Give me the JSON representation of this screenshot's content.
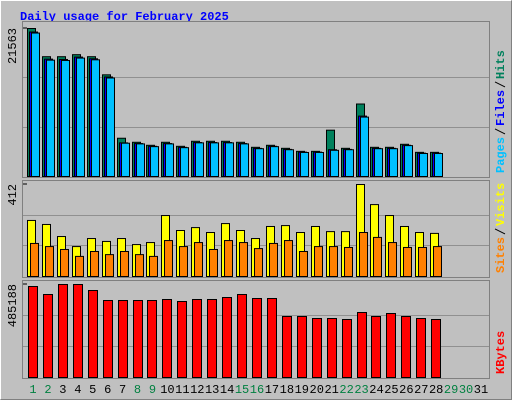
{
  "chart_data": [
    {
      "type": "bar",
      "title": "Daily usage for February 2025",
      "ylim": [
        0,
        21563
      ],
      "yticks": [
        21563
      ],
      "series": [
        {
          "name": "Hits",
          "color": "#00805c",
          "values": [
            21563,
            17456,
            17456,
            17750,
            17456,
            14815,
            5574,
            4987,
            4547,
            4987,
            4400,
            5134,
            5134,
            5134,
            4987,
            4254,
            4547,
            4107,
            3667,
            3667,
            6748,
            4107,
            10562,
            4254,
            4254,
            4694,
            3520,
            3520,
            null,
            null,
            null
          ]
        },
        {
          "name": "Files",
          "color": "#0000ff",
          "values": [
            21050,
            17100,
            17050,
            17400,
            17150,
            14500,
            4900,
            4800,
            4400,
            4800,
            4250,
            4950,
            4950,
            4950,
            4800,
            4100,
            4400,
            3950,
            3550,
            3550,
            3900,
            3950,
            8800,
            4100,
            4100,
            4550,
            3400,
            3400,
            null,
            null,
            null
          ]
        },
        {
          "name": "Pages",
          "color": "#00c0ff",
          "values": [
            20900,
            16950,
            16900,
            17250,
            17000,
            14350,
            4850,
            4750,
            4350,
            4750,
            4200,
            4900,
            4900,
            4900,
            4750,
            4050,
            4350,
            3900,
            3500,
            3500,
            3814,
            3900,
            8654,
            4050,
            4050,
            4500,
            3350,
            3350,
            null,
            null,
            null
          ]
        }
      ]
    },
    {
      "type": "bar",
      "ylim": [
        0,
        412
      ],
      "yticks": [
        412
      ],
      "series": [
        {
          "name": "Visits",
          "color": "#ffff00",
          "values": [
            251,
            233,
            179,
            134,
            170,
            157,
            170,
            143,
            152,
            273,
            206,
            219,
            197,
            237,
            206,
            170,
            224,
            228,
            197,
            224,
            201,
            201,
            412,
            322,
            273,
            224,
            197,
            193,
            null,
            null,
            null
          ]
        },
        {
          "name": "Sites",
          "color": "#ff8000",
          "values": [
            148,
            134,
            121,
            90,
            112,
            98,
            112,
            98,
            90,
            161,
            134,
            152,
            121,
            161,
            152,
            125,
            148,
            161,
            112,
            134,
            134,
            130,
            197,
            175,
            152,
            130,
            130,
            134,
            null,
            null,
            null
          ]
        }
      ]
    },
    {
      "type": "bar",
      "ylim": [
        0,
        485188
      ],
      "yticks": [
        485188
      ],
      "categories": [
        "1",
        "2",
        "3",
        "4",
        "5",
        "6",
        "7",
        "8",
        "9",
        "10",
        "11",
        "12",
        "13",
        "14",
        "15",
        "16",
        "17",
        "18",
        "19",
        "20",
        "21",
        "22",
        "23",
        "24",
        "25",
        "26",
        "27",
        "28",
        "29",
        "30",
        "31"
      ],
      "category_colors": [
        "#008040",
        "#008040",
        "#000000",
        "#000000",
        "#000000",
        "#000000",
        "#000000",
        "#008040",
        "#008040",
        "#000000",
        "#000000",
        "#000000",
        "#000000",
        "#000000",
        "#008040",
        "#008040",
        "#000000",
        "#000000",
        "#000000",
        "#000000",
        "#000000",
        "#008040",
        "#008040",
        "#000000",
        "#000000",
        "#000000",
        "#000000",
        "#000000",
        "#008040",
        "#008040",
        "#000000"
      ],
      "series": [
        {
          "name": "KBytes",
          "color": "#ff0000",
          "values": [
            474754,
            433016,
            485188,
            485188,
            453885,
            401713,
            401713,
            401713,
            401713,
            406930,
            396496,
            406930,
            406930,
            417365,
            433016,
            412147,
            412147,
            318238,
            318238,
            307804,
            307804,
            302587,
            339108,
            318238,
            333891,
            318238,
            307804,
            302587,
            null,
            null,
            null
          ]
        }
      ]
    }
  ]
}
